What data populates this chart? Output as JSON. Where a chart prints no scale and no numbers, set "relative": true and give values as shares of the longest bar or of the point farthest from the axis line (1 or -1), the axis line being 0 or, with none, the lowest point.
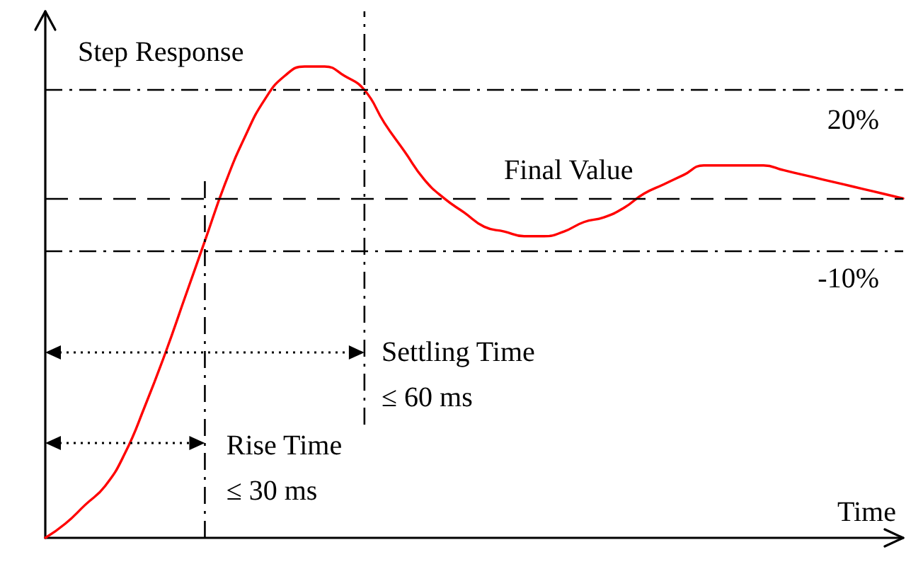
{
  "chart_data": {
    "type": "line",
    "relative": true,
    "xlabel": "Time",
    "ylabel": "Step Response",
    "categories": [
      null,
      null,
      null,
      null,
      null,
      null,
      null,
      null,
      null,
      null,
      null,
      null,
      null,
      null,
      null,
      null,
      null,
      null,
      null,
      null,
      null,
      null,
      null,
      null,
      null,
      null,
      null,
      null,
      null,
      null,
      null,
      null,
      null,
      null,
      null,
      null,
      null,
      null,
      null,
      null,
      null,
      null,
      null,
      null
    ],
    "series": [
      {
        "color": "#ff0000",
        "values": [
          0,
          0.03,
          0.07,
          0.11,
          0.18,
          0.28,
          0.39,
          0.51,
          0.63,
          0.75,
          0.85,
          0.93,
          0.98,
          1,
          1,
          0.98,
          0.95,
          0.88,
          0.82,
          0.76,
          0.72,
          0.69,
          0.66,
          0.65,
          0.64,
          0.64,
          0.65,
          0.67,
          0.68,
          0.7,
          0.73,
          0.75,
          0.77,
          0.79,
          0.79,
          0.79,
          0.79,
          0.78,
          0.77,
          0.76,
          0.75,
          0.74,
          0.73,
          0.72
        ]
      }
    ],
    "ref_lines": [
      {
        "axis": "y",
        "value": 0.95,
        "color": "#000000",
        "line_style": "dashdot"
      },
      {
        "axis": "y",
        "value": 0.72,
        "label": "Final Value",
        "color": "#000000",
        "line_style": "dashed"
      },
      {
        "axis": "y",
        "value": 0.61,
        "color": "#000000",
        "line_style": "dashdot"
      }
    ],
    "annotations": [
      "20%",
      "-10%",
      "Rise Time\n≤ 30 ms",
      "Settling Time\n≤ 60 ms"
    ]
  }
}
